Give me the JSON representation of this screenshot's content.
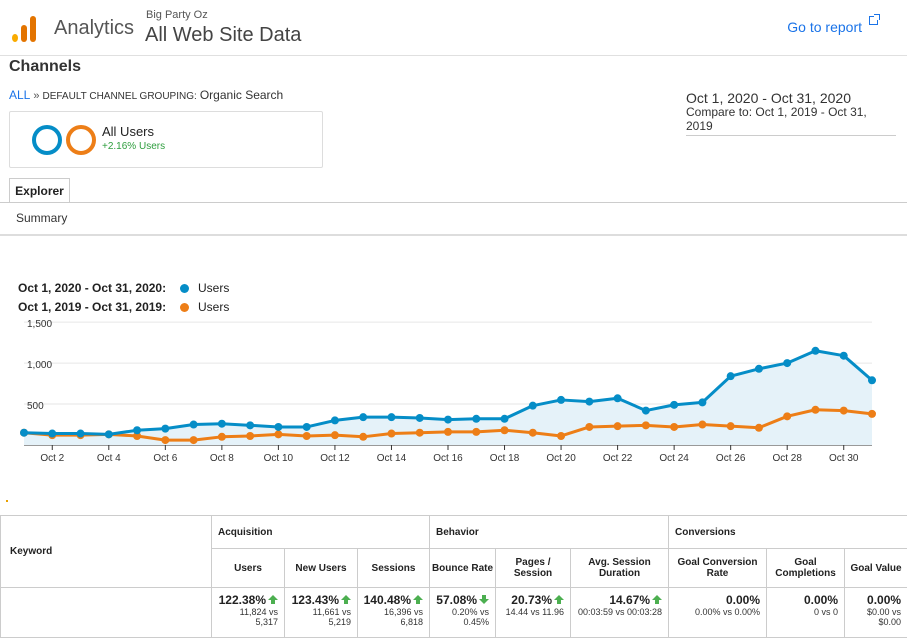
{
  "header": {
    "app_name": "Analytics",
    "account": "Big Party Oz",
    "property": "All Web Site Data",
    "goto_report": "Go to report",
    "logo_colors": [
      "#f9ab00",
      "#e37400",
      "#e37400"
    ]
  },
  "page": {
    "title": "Channels",
    "breadcrumb_all": "ALL",
    "breadcrumb_sep": "»",
    "breadcrumb_dimension": "DEFAULT CHANNEL GROUPING:",
    "breadcrumb_value": "Organic Search"
  },
  "date_range": {
    "main": "Oct 1, 2020 - Oct 31, 2020",
    "compare": "Compare to: Oct 1, 2019 - Oct 31, 2019"
  },
  "segment": {
    "name": "All Users",
    "delta": "+2.16% Users",
    "colors": [
      "#058dc7",
      "#ed7e17"
    ]
  },
  "tabs": {
    "explorer": "Explorer",
    "summary": "Summary"
  },
  "legend": [
    {
      "range": "Oct 1, 2020 - Oct 31, 2020:",
      "label": "Users",
      "color": "#058dc7"
    },
    {
      "range": "Oct 1, 2019 - Oct 31, 2019:",
      "label": "Users",
      "color": "#ed7e17"
    }
  ],
  "chart_data": {
    "type": "line",
    "title": "",
    "xlabel": "",
    "ylabel": "",
    "ylim": [
      0,
      1550
    ],
    "yticks": [
      "1,500",
      "1,000",
      "500"
    ],
    "ytick_values": [
      1500,
      1000,
      500
    ],
    "xticks": [
      "Oct 2",
      "Oct 4",
      "Oct 6",
      "Oct 8",
      "Oct 10",
      "Oct 12",
      "Oct 14",
      "Oct 16",
      "Oct 18",
      "Oct 20",
      "Oct 22",
      "Oct 24",
      "Oct 26",
      "Oct 28",
      "Oct 30"
    ],
    "grid": true,
    "series": [
      {
        "name": "Users",
        "color": "#058dc7",
        "fill": true,
        "values": [
          150,
          140,
          140,
          130,
          180,
          200,
          250,
          260,
          240,
          220,
          220,
          300,
          340,
          340,
          330,
          310,
          320,
          320,
          480,
          550,
          530,
          570,
          420,
          490,
          520,
          840,
          930,
          1000,
          1150,
          1090,
          790
        ]
      },
      {
        "name": "Users",
        "color": "#ed7e17",
        "fill": false,
        "values": [
          150,
          120,
          120,
          130,
          110,
          60,
          60,
          100,
          110,
          130,
          110,
          120,
          100,
          140,
          150,
          160,
          160,
          180,
          150,
          110,
          220,
          230,
          240,
          220,
          250,
          230,
          210,
          350,
          430,
          420,
          380
        ]
      }
    ]
  },
  "table": {
    "keyword_header": "Keyword",
    "groups": [
      "Acquisition",
      "Behavior",
      "Conversions"
    ],
    "columns": [
      "Users",
      "New Users",
      "Sessions",
      "Bounce Rate",
      "Pages / Session",
      "Avg. Session Duration",
      "Goal Conversion Rate",
      "Goal Completions",
      "Goal Value"
    ],
    "totals": [
      {
        "value": "122.38%",
        "arrow": "up",
        "detail": [
          "11,824 vs",
          "5,317"
        ]
      },
      {
        "value": "123.43%",
        "arrow": "up",
        "detail": [
          "11,661 vs",
          "5,219"
        ]
      },
      {
        "value": "140.48%",
        "arrow": "up",
        "detail": [
          "16,396 vs",
          "6,818"
        ]
      },
      {
        "value": "57.08%",
        "arrow": "down",
        "detail": [
          "0.20% vs",
          "0.45%"
        ]
      },
      {
        "value": "20.73%",
        "arrow": "up",
        "detail": [
          "14.44 vs 11.96"
        ]
      },
      {
        "value": "14.67%",
        "arrow": "up",
        "detail": [
          "00:03:59 vs 00:03:28"
        ]
      },
      {
        "value": "0.00%",
        "arrow": "",
        "detail": [
          "0.00% vs 0.00%"
        ]
      },
      {
        "value": "0.00%",
        "arrow": "",
        "detail": [
          "0 vs 0"
        ]
      },
      {
        "value": "0.00%",
        "arrow": "",
        "detail": [
          "$0.00 vs",
          "$0.00"
        ]
      }
    ]
  }
}
